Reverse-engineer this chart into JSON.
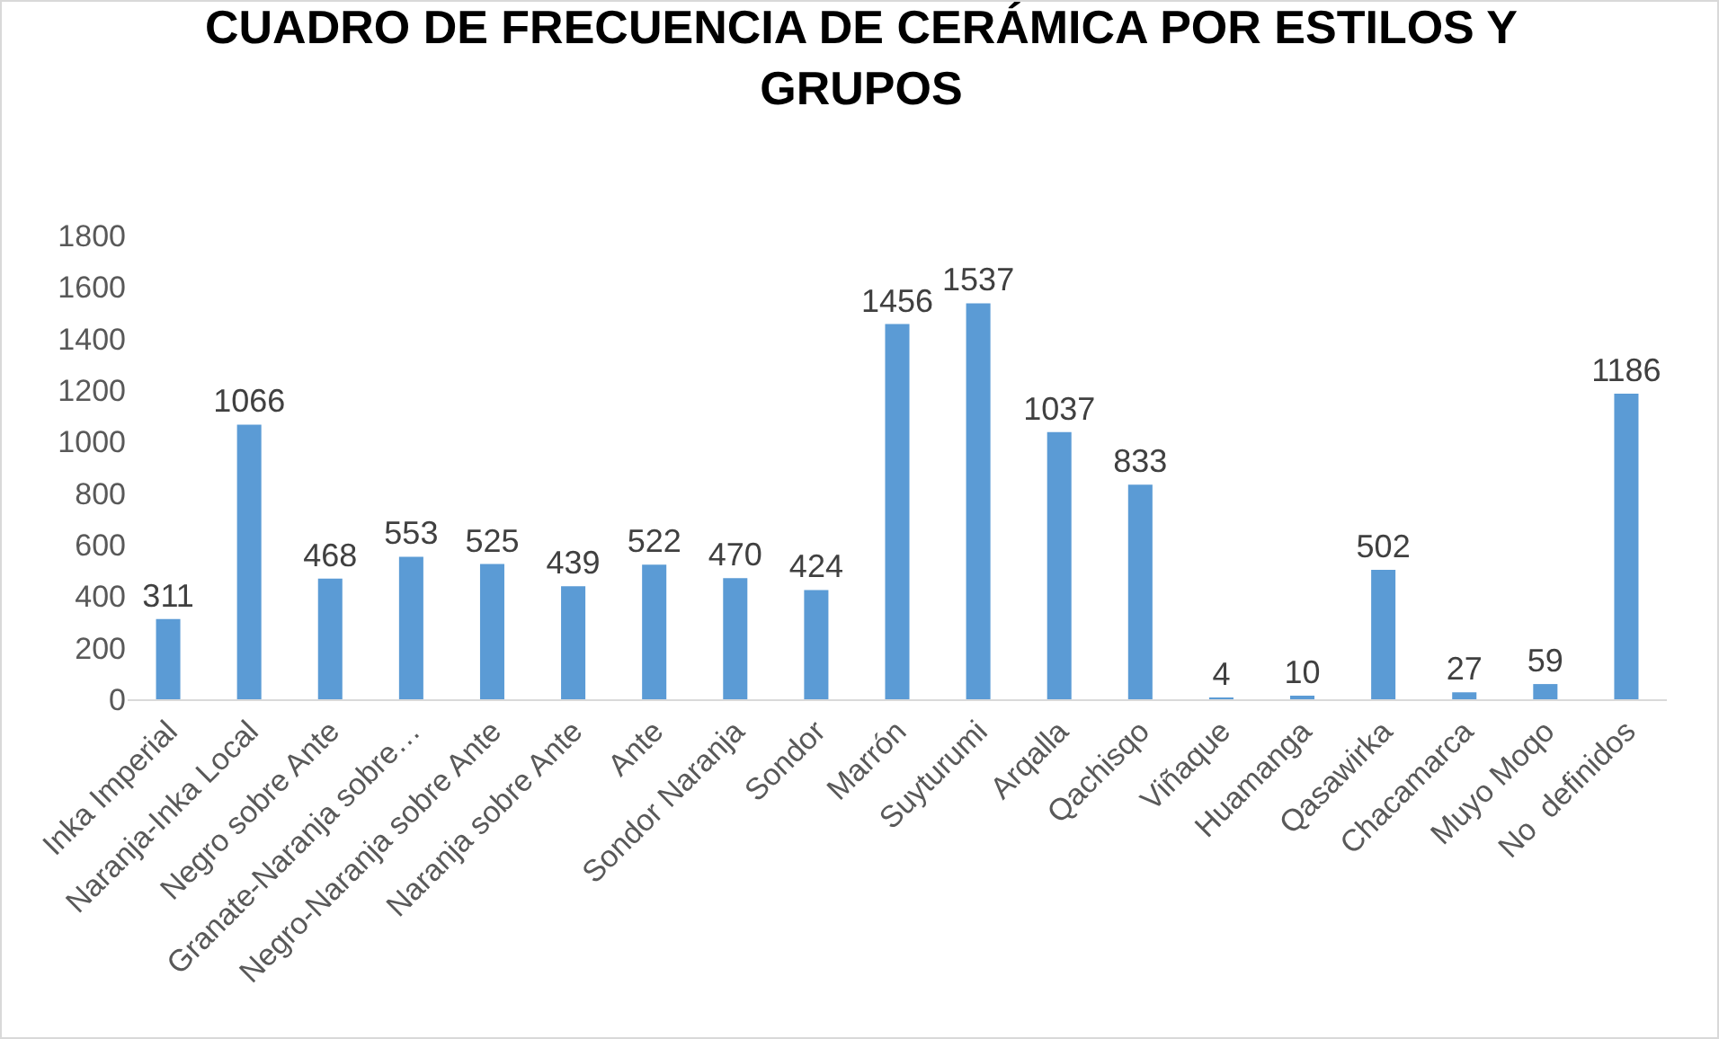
{
  "chart_data": {
    "type": "bar",
    "title": "CUADRO DE FRECUENCIA DE CERÁMICA POR ESTILOS Y GRUPOS",
    "categories": [
      "Inka Imperial",
      "Naranja-Inka Local",
      "Negro sobre Ante",
      "Granate-Naranja sobre…",
      "Negro-Naranja sobre Ante",
      "Naranja sobre Ante",
      "Ante",
      "Sondor Naranja",
      "Sondor",
      "Marrón",
      "Suyturumi",
      "Arqalla",
      "Qachisqo",
      "Viñaque",
      "Huamanga",
      "Qasawirka",
      "Chacamarca",
      "Muyo Moqo",
      "No  definidos"
    ],
    "values": [
      311,
      1066,
      468,
      553,
      525,
      439,
      522,
      470,
      424,
      1456,
      1537,
      1037,
      833,
      4,
      10,
      502,
      27,
      59,
      1186
    ],
    "color": "#5b9bd5",
    "ylim": [
      0,
      1800
    ],
    "yticks": [
      0,
      200,
      400,
      600,
      800,
      1000,
      1200,
      1400,
      1600,
      1800
    ],
    "grid": false,
    "data_labels": true
  }
}
